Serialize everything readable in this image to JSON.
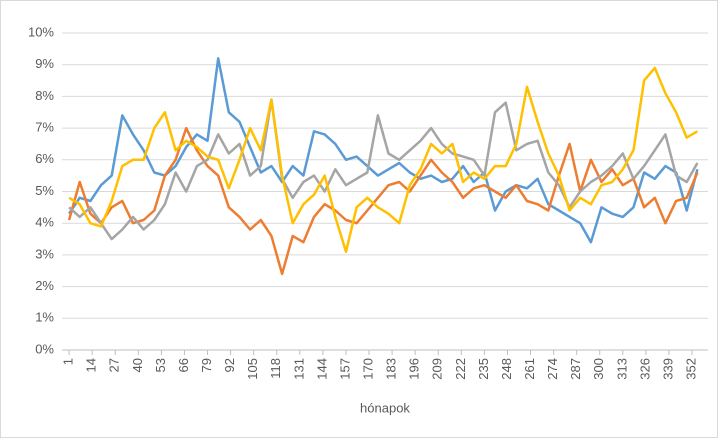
{
  "chart_data": {
    "type": "line",
    "x_label": "hónapok",
    "x": [
      1,
      7,
      13,
      19,
      25,
      31,
      37,
      43,
      49,
      55,
      61,
      67,
      73,
      79,
      85,
      91,
      97,
      103,
      109,
      115,
      121,
      127,
      133,
      139,
      145,
      151,
      157,
      163,
      169,
      175,
      181,
      187,
      193,
      199,
      205,
      211,
      217,
      223,
      229,
      235,
      241,
      247,
      253,
      259,
      265,
      271,
      277,
      283,
      289,
      295,
      301,
      307,
      313,
      319,
      325,
      331,
      337,
      343,
      349,
      355
    ],
    "series": [
      {
        "color": "#5b9bd5",
        "values": [
          4.3,
          4.8,
          4.7,
          5.2,
          5.5,
          7.4,
          6.8,
          6.3,
          5.6,
          5.5,
          5.8,
          6.4,
          6.8,
          6.6,
          9.2,
          7.5,
          7.2,
          6.4,
          5.6,
          5.8,
          5.3,
          5.8,
          5.5,
          6.9,
          6.8,
          6.5,
          6.0,
          6.1,
          5.8,
          5.5,
          5.7,
          5.9,
          5.6,
          5.4,
          5.5,
          5.3,
          5.4,
          5.8,
          5.3,
          5.6,
          4.4,
          5.0,
          5.2,
          5.1,
          5.4,
          4.6,
          4.4,
          4.2,
          4.0,
          3.4,
          4.5,
          4.3,
          4.2,
          4.5,
          5.6,
          5.4,
          5.8,
          5.6,
          4.4,
          5.7
        ]
      },
      {
        "color": "#ed7d31",
        "values": [
          4.1,
          5.3,
          4.3,
          4.0,
          4.5,
          4.7,
          4.0,
          4.1,
          4.4,
          5.5,
          6.0,
          7.0,
          6.3,
          5.8,
          5.5,
          4.5,
          4.2,
          3.8,
          4.1,
          3.6,
          2.4,
          3.6,
          3.4,
          4.2,
          4.6,
          4.4,
          4.1,
          4.0,
          4.4,
          4.8,
          5.2,
          5.3,
          5.0,
          5.5,
          6.0,
          5.6,
          5.3,
          4.8,
          5.1,
          5.2,
          5.0,
          4.8,
          5.2,
          4.7,
          4.6,
          4.4,
          5.5,
          6.5,
          5.0,
          6.0,
          5.3,
          5.7,
          5.2,
          5.4,
          4.5,
          4.8,
          4.0,
          4.7,
          4.8,
          5.6
        ]
      },
      {
        "color": "#a5a5a5",
        "values": [
          4.5,
          4.2,
          4.5,
          4.0,
          3.5,
          3.8,
          4.2,
          3.8,
          4.1,
          4.6,
          5.6,
          5.0,
          5.8,
          6.0,
          6.8,
          6.2,
          6.5,
          5.5,
          5.8,
          7.9,
          5.4,
          4.8,
          5.3,
          5.5,
          5.0,
          5.7,
          5.2,
          5.4,
          5.6,
          7.4,
          6.2,
          6.0,
          6.3,
          6.6,
          7.0,
          6.5,
          6.2,
          6.1,
          6.0,
          5.5,
          7.5,
          7.8,
          6.3,
          6.5,
          6.6,
          5.6,
          5.2,
          4.5,
          5.0,
          5.3,
          5.5,
          5.8,
          6.2,
          5.4,
          5.8,
          6.3,
          6.8,
          5.5,
          5.3,
          5.9
        ]
      },
      {
        "color": "#ffc000",
        "values": [
          4.8,
          4.6,
          4.0,
          3.9,
          4.7,
          5.8,
          6.0,
          6.0,
          7.0,
          7.5,
          6.3,
          6.6,
          6.4,
          6.1,
          6.0,
          5.1,
          6.0,
          7.0,
          6.3,
          7.9,
          5.5,
          4.0,
          4.6,
          4.9,
          5.5,
          4.2,
          3.1,
          4.5,
          4.8,
          4.5,
          4.3,
          4.0,
          5.2,
          5.7,
          6.5,
          6.2,
          6.5,
          5.3,
          5.6,
          5.4,
          5.8,
          5.8,
          6.5,
          8.3,
          7.2,
          6.2,
          5.5,
          4.4,
          4.8,
          4.6,
          5.2,
          5.3,
          5.7,
          6.3,
          8.5,
          8.9,
          8.1,
          7.5,
          6.7,
          6.9
        ]
      }
    ],
    "xlim": [
      -3,
      361
    ],
    "xticks": [
      1,
      14,
      27,
      40,
      53,
      66,
      79,
      92,
      105,
      118,
      131,
      144,
      157,
      170,
      183,
      196,
      209,
      222,
      235,
      248,
      261,
      274,
      287,
      300,
      313,
      326,
      339,
      352
    ],
    "ylim": [
      0,
      10
    ],
    "yticks": [
      {
        "value": 0,
        "label": "0%"
      },
      {
        "value": 1,
        "label": "1%"
      },
      {
        "value": 2,
        "label": "2%"
      },
      {
        "value": 3,
        "label": "3%"
      },
      {
        "value": 4,
        "label": "4%"
      },
      {
        "value": 5,
        "label": "5%"
      },
      {
        "value": 6,
        "label": "6%"
      },
      {
        "value": 7,
        "label": "7%"
      },
      {
        "value": 8,
        "label": "8%"
      },
      {
        "value": 9,
        "label": "9%"
      },
      {
        "value": 10,
        "label": "10%"
      }
    ],
    "grid": true
  }
}
